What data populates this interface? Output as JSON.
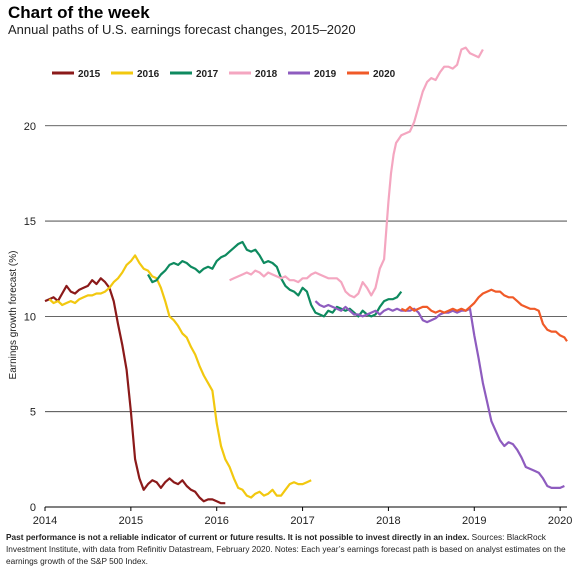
{
  "header": {
    "title": "Chart of the week",
    "subtitle": "Annual paths of U.S. earnings forecast changes, 2015–2020"
  },
  "footnote": {
    "bold": "Past performance is not a reliable indicator of current or future results. It is not possible to invest directly in an index.",
    "text": " Sources: BlackRock Investment Institute, with data from Refinitiv Datastream, February 2020. Notes: Each year’s earnings forecast path is based on analyst estimates on the earnings growth of the S&P 500 Index."
  },
  "chart_data": {
    "type": "line",
    "title": "Chart of the week",
    "subtitle": "Annual paths of U.S. earnings forecast changes, 2015–2020",
    "xlabel": "",
    "ylabel": "Earnings growth forecast (%)",
    "xlim": [
      2014,
      2020.08
    ],
    "ylim": [
      0,
      24.5
    ],
    "x_ticks": [
      "2014",
      "2015",
      "2016",
      "2017",
      "2018",
      "2019",
      "2020"
    ],
    "y_ticks": [
      "0",
      "5",
      "10",
      "15",
      "20"
    ],
    "grid": "horizontal",
    "legend": "top-left",
    "series": [
      {
        "name": "2015",
        "color": "#8b1a1a",
        "x": [
          2014,
          2014.05,
          2014.1,
          2014.15,
          2014.2,
          2014.25,
          2014.3,
          2014.35,
          2014.4,
          2014.45,
          2014.5,
          2014.55,
          2014.6,
          2014.65,
          2014.7,
          2014.75,
          2014.8,
          2014.85,
          2014.9,
          2014.95,
          2015,
          2015.05,
          2015.1,
          2015.15,
          2015.2,
          2015.25,
          2015.3,
          2015.35,
          2015.4,
          2015.45,
          2015.5,
          2015.55,
          2015.6,
          2015.65,
          2015.7,
          2015.75,
          2015.8,
          2015.85,
          2015.9,
          2015.95,
          2016,
          2016.05,
          2016.1
        ],
        "y": [
          10.8,
          10.9,
          11.0,
          10.8,
          11.2,
          11.6,
          11.3,
          11.2,
          11.4,
          11.5,
          11.6,
          11.9,
          11.7,
          12.0,
          11.8,
          11.5,
          10.8,
          9.6,
          8.5,
          7.2,
          5.0,
          2.5,
          1.5,
          0.9,
          1.2,
          1.4,
          1.3,
          1.0,
          1.3,
          1.5,
          1.3,
          1.2,
          1.4,
          1.1,
          0.9,
          0.8,
          0.5,
          0.3,
          0.4,
          0.4,
          0.3,
          0.2,
          0.2
        ]
      },
      {
        "name": "2016",
        "color": "#f2c80f",
        "x": [
          2014.05,
          2014.1,
          2014.15,
          2014.2,
          2014.25,
          2014.3,
          2014.35,
          2014.4,
          2014.45,
          2014.5,
          2014.55,
          2014.6,
          2014.65,
          2014.7,
          2014.75,
          2014.8,
          2014.85,
          2014.9,
          2014.95,
          2015,
          2015.05,
          2015.1,
          2015.15,
          2015.2,
          2015.25,
          2015.3,
          2015.35,
          2015.4,
          2015.45,
          2015.5,
          2015.55,
          2015.6,
          2015.65,
          2015.7,
          2015.75,
          2015.8,
          2015.85,
          2015.9,
          2015.95,
          2016,
          2016.05,
          2016.1,
          2016.15,
          2016.2,
          2016.25,
          2016.3,
          2016.35,
          2016.4,
          2016.45,
          2016.5,
          2016.55,
          2016.6,
          2016.65,
          2016.7,
          2016.75,
          2016.8,
          2016.85,
          2016.9,
          2016.95,
          2017,
          2017.05,
          2017.1
        ],
        "y": [
          10.9,
          10.7,
          10.8,
          10.6,
          10.7,
          10.8,
          10.7,
          10.9,
          11.0,
          11.1,
          11.1,
          11.2,
          11.2,
          11.3,
          11.5,
          11.8,
          12.0,
          12.3,
          12.7,
          12.9,
          13.2,
          12.8,
          12.5,
          12.4,
          12.1,
          12.0,
          11.5,
          10.8,
          10.0,
          9.8,
          9.5,
          9.1,
          8.9,
          8.4,
          8.0,
          7.4,
          6.9,
          6.5,
          6.1,
          4.4,
          3.2,
          2.5,
          2.1,
          1.5,
          1.0,
          0.9,
          0.6,
          0.5,
          0.7,
          0.8,
          0.6,
          0.7,
          0.9,
          0.6,
          0.6,
          0.9,
          1.2,
          1.3,
          1.2,
          1.2,
          1.3,
          1.4
        ]
      },
      {
        "name": "2017",
        "color": "#0e8a5f",
        "x": [
          2015.2,
          2015.25,
          2015.3,
          2015.35,
          2015.4,
          2015.45,
          2015.5,
          2015.55,
          2015.6,
          2015.65,
          2015.7,
          2015.75,
          2015.8,
          2015.85,
          2015.9,
          2015.95,
          2016,
          2016.05,
          2016.1,
          2016.15,
          2016.2,
          2016.25,
          2016.3,
          2016.35,
          2016.4,
          2016.45,
          2016.5,
          2016.55,
          2016.6,
          2016.65,
          2016.7,
          2016.75,
          2016.8,
          2016.85,
          2016.9,
          2016.95,
          2017,
          2017.05,
          2017.1,
          2017.15,
          2017.2,
          2017.25,
          2017.3,
          2017.35,
          2017.4,
          2017.45,
          2017.5,
          2017.55,
          2017.6,
          2017.65,
          2017.7,
          2017.75,
          2017.8,
          2017.85,
          2017.9,
          2017.95,
          2018,
          2018.05,
          2018.1,
          2018.15
        ],
        "y": [
          12.2,
          11.8,
          11.9,
          12.2,
          12.4,
          12.7,
          12.8,
          12.7,
          12.9,
          12.8,
          12.6,
          12.5,
          12.3,
          12.5,
          12.6,
          12.5,
          12.9,
          13.1,
          13.2,
          13.4,
          13.6,
          13.8,
          13.9,
          13.5,
          13.4,
          13.5,
          13.2,
          12.8,
          12.9,
          12.8,
          12.6,
          12.0,
          11.6,
          11.4,
          11.3,
          11.1,
          11.5,
          11.3,
          10.6,
          10.2,
          10.1,
          10.0,
          10.3,
          10.2,
          10.5,
          10.4,
          10.3,
          10.4,
          10.2,
          10.0,
          10.3,
          10.1,
          10.0,
          10.1,
          10.5,
          10.8,
          10.9,
          10.9,
          11.0,
          11.3
        ]
      },
      {
        "name": "2018",
        "color": "#f4a6c0",
        "x": [
          2016.15,
          2016.2,
          2016.25,
          2016.3,
          2016.35,
          2016.4,
          2016.45,
          2016.5,
          2016.55,
          2016.6,
          2016.65,
          2016.7,
          2016.75,
          2016.8,
          2016.85,
          2016.9,
          2016.95,
          2017,
          2017.05,
          2017.1,
          2017.15,
          2017.2,
          2017.25,
          2017.3,
          2017.35,
          2017.4,
          2017.45,
          2017.5,
          2017.55,
          2017.6,
          2017.65,
          2017.7,
          2017.75,
          2017.8,
          2017.85,
          2017.9,
          2017.95,
          2018,
          2018.03,
          2018.06,
          2018.09,
          2018.12,
          2018.15,
          2018.2,
          2018.25,
          2018.3,
          2018.35,
          2018.4,
          2018.45,
          2018.5,
          2018.55,
          2018.6,
          2018.65,
          2018.7,
          2018.75,
          2018.8,
          2018.85,
          2018.9,
          2018.95,
          2019,
          2019.05,
          2019.1
        ],
        "y": [
          11.9,
          12.0,
          12.1,
          12.2,
          12.3,
          12.2,
          12.4,
          12.3,
          12.1,
          12.3,
          12.2,
          12.1,
          12.0,
          12.1,
          11.9,
          11.9,
          11.8,
          12.0,
          12.0,
          12.2,
          12.3,
          12.2,
          12.1,
          12.0,
          12.0,
          12.0,
          11.8,
          11.3,
          11.1,
          11.0,
          11.2,
          11.8,
          11.5,
          11.1,
          11.5,
          12.5,
          13.0,
          16.0,
          17.5,
          18.5,
          19.1,
          19.3,
          19.5,
          19.6,
          19.7,
          20.2,
          21.0,
          21.8,
          22.3,
          22.5,
          22.4,
          22.8,
          23.1,
          23.1,
          23.0,
          23.2,
          24.0,
          24.1,
          23.8,
          23.7,
          23.6,
          24.0
        ]
      },
      {
        "name": "2019",
        "color": "#8e5cbf",
        "x": [
          2017.15,
          2017.2,
          2017.25,
          2017.3,
          2017.35,
          2017.4,
          2017.45,
          2017.5,
          2017.55,
          2017.6,
          2017.65,
          2017.7,
          2017.75,
          2017.8,
          2017.85,
          2017.9,
          2017.95,
          2018,
          2018.05,
          2018.1,
          2018.15,
          2018.2,
          2018.25,
          2018.3,
          2018.35,
          2018.4,
          2018.45,
          2018.5,
          2018.55,
          2018.6,
          2018.65,
          2018.7,
          2018.75,
          2018.8,
          2018.85,
          2018.9,
          2018.95,
          2019,
          2019.05,
          2019.1,
          2019.15,
          2019.2,
          2019.25,
          2019.3,
          2019.35,
          2019.4,
          2019.45,
          2019.5,
          2019.55,
          2019.6,
          2019.65,
          2019.7,
          2019.75,
          2019.8,
          2019.85,
          2019.9,
          2019.95,
          2020,
          2020.05
        ],
        "y": [
          10.8,
          10.6,
          10.5,
          10.6,
          10.5,
          10.4,
          10.3,
          10.5,
          10.3,
          10.1,
          10.1,
          10.0,
          10.1,
          10.2,
          10.3,
          10.1,
          10.3,
          10.4,
          10.3,
          10.4,
          10.3,
          10.3,
          10.3,
          10.4,
          10.2,
          9.8,
          9.7,
          9.8,
          9.9,
          10.1,
          10.2,
          10.2,
          10.3,
          10.2,
          10.3,
          10.3,
          10.4,
          9.0,
          7.8,
          6.5,
          5.5,
          4.5,
          4.0,
          3.5,
          3.2,
          3.4,
          3.3,
          3.0,
          2.6,
          2.1,
          2.0,
          1.9,
          1.8,
          1.5,
          1.1,
          1.0,
          1.0,
          1.0,
          1.1
        ]
      },
      {
        "name": "2020",
        "color": "#f05a28",
        "x": [
          2018.15,
          2018.2,
          2018.25,
          2018.3,
          2018.35,
          2018.4,
          2018.45,
          2018.5,
          2018.55,
          2018.6,
          2018.65,
          2018.7,
          2018.75,
          2018.8,
          2018.85,
          2018.9,
          2018.95,
          2019,
          2019.05,
          2019.1,
          2019.15,
          2019.2,
          2019.25,
          2019.3,
          2019.35,
          2019.4,
          2019.45,
          2019.5,
          2019.55,
          2019.6,
          2019.65,
          2019.7,
          2019.75,
          2019.8,
          2019.85,
          2019.9,
          2019.95,
          2020,
          2020.05,
          2020.08
        ],
        "y": [
          10.4,
          10.3,
          10.5,
          10.3,
          10.4,
          10.5,
          10.5,
          10.3,
          10.2,
          10.3,
          10.2,
          10.3,
          10.4,
          10.3,
          10.4,
          10.3,
          10.5,
          10.7,
          11.0,
          11.2,
          11.3,
          11.4,
          11.3,
          11.3,
          11.1,
          11.0,
          11.0,
          10.8,
          10.6,
          10.5,
          10.4,
          10.4,
          10.3,
          9.6,
          9.3,
          9.2,
          9.2,
          9.0,
          8.9,
          8.7
        ]
      }
    ]
  }
}
